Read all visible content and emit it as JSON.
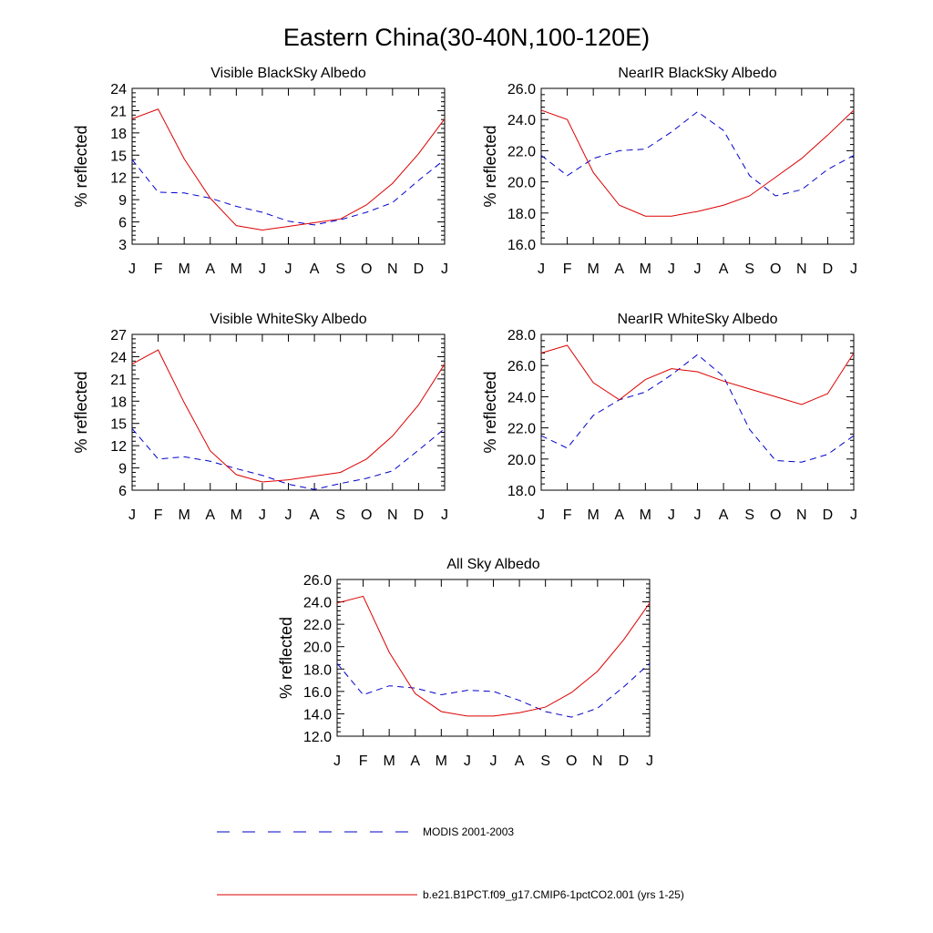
{
  "figure": {
    "title": "Eastern China(30-40N,100-120E)"
  },
  "colors": {
    "modis": "#0000cc",
    "model": "#dd0000"
  },
  "legend": {
    "items": [
      {
        "label": "MODIS 2001-2003",
        "style": "dashed",
        "color": "#0000cc"
      },
      {
        "label": "b.e21.B1PCT.f09_g17.CMIP6-1pctCO2.001 (yrs 1-25)",
        "style": "solid",
        "color": "#dd0000"
      }
    ]
  },
  "chart_data": [
    {
      "type": "line",
      "title": "Visible BlackSky Albedo",
      "ylabel": "% reflected",
      "xlabel": "",
      "categories": [
        "J",
        "F",
        "M",
        "A",
        "M",
        "J",
        "J",
        "A",
        "S",
        "O",
        "N",
        "D",
        "J"
      ],
      "ylim": [
        3,
        24
      ],
      "yticks": [
        3,
        6,
        9,
        12,
        15,
        18,
        21,
        24
      ],
      "ytick_decimals": 0,
      "grid": false,
      "series": [
        {
          "name": "MODIS 2001-2003",
          "style": "dashed",
          "values": [
            14.4,
            10.0,
            9.9,
            9.2,
            8.1,
            7.3,
            6.1,
            5.6,
            6.3,
            7.3,
            8.6,
            11.6,
            14.4
          ]
        },
        {
          "name": "b.e21.B1PCT.f09_g17.CMIP6-1pctCO2.001 (yrs 1-25)",
          "style": "solid",
          "values": [
            19.9,
            21.2,
            14.5,
            9.2,
            5.5,
            4.9,
            5.4,
            5.9,
            6.4,
            8.3,
            11.2,
            15.2,
            19.9
          ]
        }
      ]
    },
    {
      "type": "line",
      "title": "NearIR BlackSky Albedo",
      "ylabel": "% reflected",
      "xlabel": "",
      "categories": [
        "J",
        "F",
        "M",
        "A",
        "M",
        "J",
        "J",
        "A",
        "S",
        "O",
        "N",
        "D",
        "J"
      ],
      "ylim": [
        16.0,
        26.0
      ],
      "yticks": [
        16.0,
        18.0,
        20.0,
        22.0,
        24.0,
        26.0
      ],
      "ytick_decimals": 1,
      "grid": false,
      "series": [
        {
          "name": "MODIS 2001-2003",
          "style": "dashed",
          "values": [
            21.7,
            20.4,
            21.5,
            22.0,
            22.1,
            23.2,
            24.5,
            23.3,
            20.4,
            19.1,
            19.5,
            20.8,
            21.7
          ]
        },
        {
          "name": "b.e21.B1PCT.f09_g17.CMIP6-1pctCO2.001 (yrs 1-25)",
          "style": "solid",
          "values": [
            24.6,
            24.0,
            20.6,
            18.5,
            17.8,
            17.8,
            18.1,
            18.5,
            19.1,
            20.3,
            21.5,
            23.0,
            24.6
          ]
        }
      ]
    },
    {
      "type": "line",
      "title": "Visible WhiteSky Albedo",
      "ylabel": "% reflected",
      "xlabel": "",
      "categories": [
        "J",
        "F",
        "M",
        "A",
        "M",
        "J",
        "J",
        "A",
        "S",
        "O",
        "N",
        "D",
        "J"
      ],
      "ylim": [
        6,
        27
      ],
      "yticks": [
        6,
        9,
        12,
        15,
        18,
        21,
        24,
        27
      ],
      "ytick_decimals": 0,
      "grid": false,
      "series": [
        {
          "name": "MODIS 2001-2003",
          "style": "dashed",
          "values": [
            14.3,
            10.2,
            10.5,
            9.9,
            8.9,
            8.0,
            6.8,
            6.1,
            6.9,
            7.6,
            8.6,
            11.4,
            14.3
          ]
        },
        {
          "name": "b.e21.B1PCT.f09_g17.CMIP6-1pctCO2.001 (yrs 1-25)",
          "style": "solid",
          "values": [
            23.0,
            24.9,
            17.8,
            11.3,
            8.1,
            7.1,
            7.4,
            7.9,
            8.4,
            10.2,
            13.3,
            17.5,
            23.0
          ]
        }
      ]
    },
    {
      "type": "line",
      "title": "NearIR WhiteSky Albedo",
      "ylabel": "% reflected",
      "xlabel": "",
      "categories": [
        "J",
        "F",
        "M",
        "A",
        "M",
        "J",
        "J",
        "A",
        "S",
        "O",
        "N",
        "D",
        "J"
      ],
      "ylim": [
        18.0,
        28.0
      ],
      "yticks": [
        18.0,
        20.0,
        22.0,
        24.0,
        26.0,
        28.0
      ],
      "ytick_decimals": 1,
      "grid": false,
      "series": [
        {
          "name": "MODIS 2001-2003",
          "style": "dashed",
          "values": [
            21.5,
            20.7,
            22.8,
            23.8,
            24.3,
            25.4,
            26.7,
            25.3,
            21.9,
            19.9,
            19.8,
            20.3,
            21.5
          ]
        },
        {
          "name": "b.e21.B1PCT.f09_g17.CMIP6-1pctCO2.001 (yrs 1-25)",
          "style": "solid",
          "values": [
            26.8,
            27.3,
            24.9,
            23.8,
            25.1,
            25.8,
            25.6,
            25.0,
            24.5,
            24.0,
            23.5,
            24.2,
            26.8
          ]
        }
      ]
    },
    {
      "type": "line",
      "title": "All Sky Albedo",
      "ylabel": "% reflected",
      "xlabel": "",
      "categories": [
        "J",
        "F",
        "M",
        "A",
        "M",
        "J",
        "J",
        "A",
        "S",
        "O",
        "N",
        "D",
        "J"
      ],
      "ylim": [
        12.0,
        26.0
      ],
      "yticks": [
        12.0,
        14.0,
        16.0,
        18.0,
        20.0,
        22.0,
        24.0,
        26.0
      ],
      "ytick_decimals": 1,
      "grid": false,
      "series": [
        {
          "name": "MODIS 2001-2003",
          "style": "dashed",
          "values": [
            18.5,
            15.7,
            16.5,
            16.3,
            15.7,
            16.1,
            16.0,
            15.2,
            14.2,
            13.7,
            14.5,
            16.4,
            18.5
          ]
        },
        {
          "name": "b.e21.B1PCT.f09_g17.CMIP6-1pctCO2.001 (yrs 1-25)",
          "style": "solid",
          "values": [
            23.9,
            24.5,
            19.5,
            15.8,
            14.2,
            13.8,
            13.8,
            14.1,
            14.6,
            15.9,
            17.8,
            20.6,
            23.9
          ]
        }
      ]
    }
  ]
}
